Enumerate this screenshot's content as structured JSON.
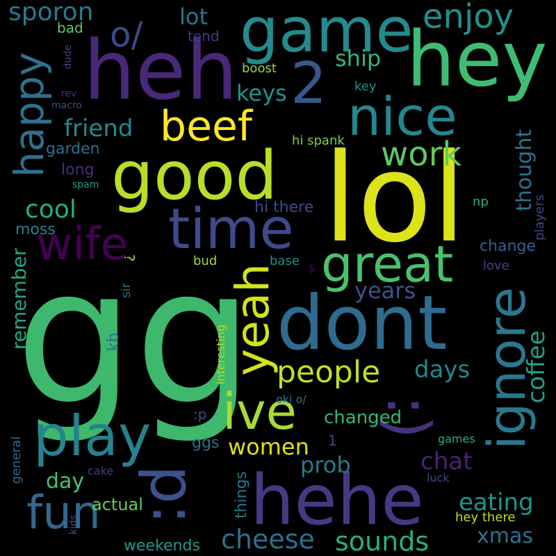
{
  "words": [
    {
      "text": "gg",
      "color": "#3db86d",
      "rot": 0
    },
    {
      "text": "lol",
      "color": "#dde318",
      "rot": 0
    },
    {
      "text": "dont",
      "color": "#2f6b8e",
      "rot": 0
    },
    {
      "text": "hehe",
      "color": "#443a83",
      "rot": 0
    },
    {
      "text": "good",
      "color": "#b8de29",
      "rot": 0
    },
    {
      "text": "heh",
      "color": "#482878",
      "rot": 0
    },
    {
      "text": "game",
      "color": "#238a8d",
      "rot": 0
    },
    {
      "text": "hey",
      "color": "#3fbc73",
      "rot": 0
    },
    {
      "text": "time",
      "color": "#3e4a89",
      "rot": 0
    },
    {
      "text": "nice",
      "color": "#24868e",
      "rot": 0
    },
    {
      "text": "ignore",
      "color": "#2a788e",
      "rot": -90
    },
    {
      "text": ":)",
      "color": "#46327e",
      "rot": 90
    },
    {
      "text": "yeah",
      "color": "#d2e21b",
      "rot": -90
    },
    {
      "text": ":d",
      "color": "#3b528b",
      "rot": -90
    },
    {
      "text": "ive",
      "color": "#a8db34",
      "rot": 0
    },
    {
      "text": "play",
      "color": "#26828e",
      "rot": 0
    },
    {
      "text": "great",
      "color": "#4ac16d",
      "rot": 0
    },
    {
      "text": "happy",
      "color": "#2c728e",
      "rot": -90
    },
    {
      "text": "beef",
      "color": "#fde725",
      "rot": 0
    },
    {
      "text": "fun",
      "color": "#31688e",
      "rot": 0
    },
    {
      "text": "wife",
      "color": "#440154",
      "rot": 0
    },
    {
      "text": "2",
      "color": "#39568c",
      "rot": 0
    },
    {
      "text": "o/",
      "color": "#3e4989",
      "rot": 0
    },
    {
      "text": "work",
      "color": "#5ec962",
      "rot": 0
    },
    {
      "text": "people",
      "color": "#c0df25",
      "rot": 0
    },
    {
      "text": "enjoy",
      "color": "#21918c",
      "rot": 0
    },
    {
      "text": "cheese",
      "color": "#2d708e",
      "rot": 0
    },
    {
      "text": "sounds",
      "color": "#29af7f",
      "rot": 0
    },
    {
      "text": "sporon",
      "color": "#29798e",
      "rot": 0
    },
    {
      "text": "coffee",
      "color": "#1fa188",
      "rot": -90
    },
    {
      "text": "eating",
      "color": "#1f968b",
      "rot": 0
    },
    {
      "text": "chat",
      "color": "#482576",
      "rot": 0
    },
    {
      "text": "cool",
      "color": "#26ad81",
      "rot": 0
    },
    {
      "text": "friend",
      "color": "#23898e",
      "rot": 0
    },
    {
      "text": "keys",
      "color": "#1f958b",
      "rot": 0
    },
    {
      "text": "ship",
      "color": "#35b779",
      "rot": 0
    },
    {
      "text": "lot",
      "color": "#2a768e",
      "rot": 0
    },
    {
      "text": "years",
      "color": "#3b528b",
      "rot": 0
    },
    {
      "text": "women",
      "color": "#d8e219",
      "rot": 0
    },
    {
      "text": "days",
      "color": "#24878e",
      "rot": 0
    },
    {
      "text": "thought",
      "color": "#2c728e",
      "rot": -90
    },
    {
      "text": "remember",
      "color": "#22a785",
      "rot": -90
    },
    {
      "text": "xmas",
      "color": "#2d718e",
      "rot": 0
    },
    {
      "text": "prob",
      "color": "#2a788e",
      "rot": 0
    },
    {
      "text": "day",
      "color": "#4ac16d",
      "rot": 0
    },
    {
      "text": "changed",
      "color": "#35b779",
      "rot": 0
    },
    {
      "text": "actual",
      "color": "#67cc5c",
      "rot": 0
    },
    {
      "text": "weekends",
      "color": "#1f9a8a",
      "rot": 0
    },
    {
      "text": "things",
      "color": "#2a788e",
      "rot": -90
    },
    {
      "text": "change",
      "color": "#355f8d",
      "rot": 0
    },
    {
      "text": "hi there",
      "color": "#3e4a89",
      "rot": 0
    },
    {
      "text": "garden",
      "color": "#2c728e",
      "rot": 0
    },
    {
      "text": "long",
      "color": "#472d7b",
      "rot": 0
    },
    {
      "text": "moss",
      "color": "#26828e",
      "rot": 0
    },
    {
      "text": "ggs",
      "color": "#2d708e",
      "rot": 0
    },
    {
      "text": "hey there",
      "color": "#c2df23",
      "rot": 0
    },
    {
      "text": "hi spank",
      "color": "#7ad151",
      "rot": 0
    },
    {
      "text": "bad",
      "color": "#5ec962",
      "rot": 0
    },
    {
      "text": "tend",
      "color": "#443983",
      "rot": 0
    },
    {
      "text": "boost",
      "color": "#93d741",
      "rot": 0
    },
    {
      "text": "key",
      "color": "#21918c",
      "rot": 0
    },
    {
      "text": "np",
      "color": "#29af7f",
      "rot": 0
    },
    {
      "text": "players",
      "color": "#414487",
      "rot": -90
    },
    {
      "text": "love",
      "color": "#414487",
      "rot": 0
    },
    {
      "text": "bud",
      "color": "#a0da39",
      "rot": 0
    },
    {
      "text": "base",
      "color": "#21918c",
      "rot": 0
    },
    {
      "text": "$",
      "color": "#440154",
      "rot": 0
    },
    {
      "text": "?",
      "color": "#9fda3a",
      "rot": 90
    },
    {
      "text": "sir",
      "color": "#31688e",
      "rot": -90
    },
    {
      "text": "kb",
      "color": "#2c728e",
      "rot": -90
    },
    {
      "text": "interesting",
      "color": "#b5de2b",
      "rot": -90
    },
    {
      "text": "oki o/",
      "color": "#2e6f8e",
      "rot": 0
    },
    {
      "text": ":p",
      "color": "#3b528b",
      "rot": 0
    },
    {
      "text": "1",
      "color": "#3e4989",
      "rot": 0
    },
    {
      "text": "games",
      "color": "#2ab07f",
      "rot": 0
    },
    {
      "text": "luck",
      "color": "#3e4a89",
      "rot": 0
    },
    {
      "text": "general",
      "color": "#31688e",
      "rot": -90
    },
    {
      "text": "cake",
      "color": "#424086",
      "rot": 0
    },
    {
      "text": "kids",
      "color": "#3b528b",
      "rot": -90
    },
    {
      "text": "dude",
      "color": "#404688",
      "rot": -90
    },
    {
      "text": "rev",
      "color": "#46307e",
      "rot": 0
    },
    {
      "text": "macro",
      "color": "#3d4e8a",
      "rot": 0
    },
    {
      "text": "spam",
      "color": "#1f9e89",
      "rot": 0
    }
  ]
}
